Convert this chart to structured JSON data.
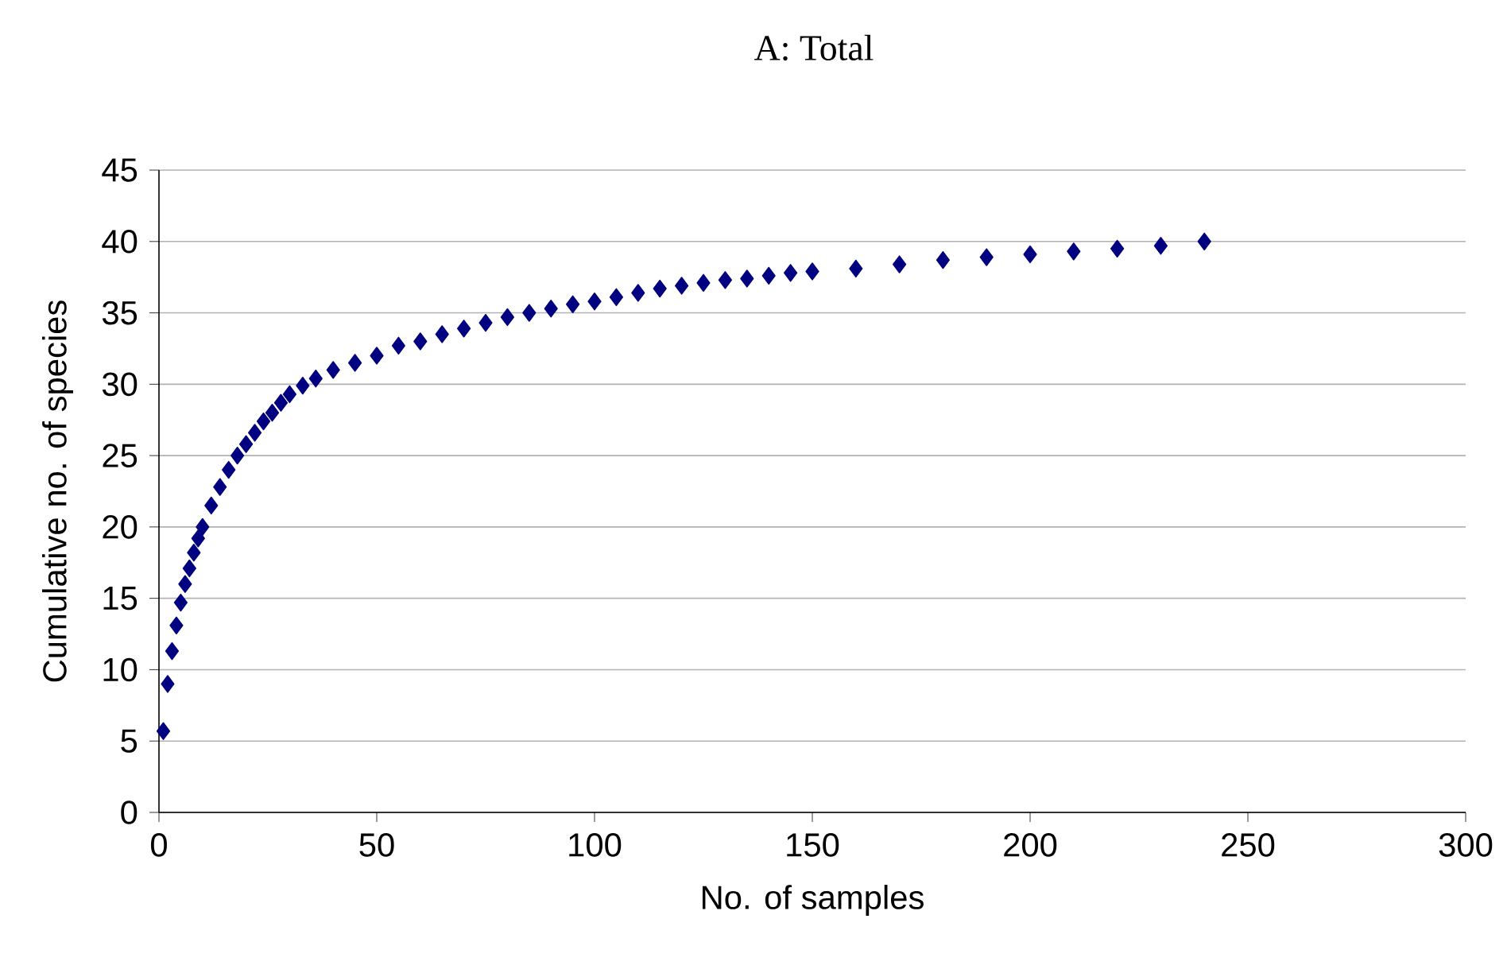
{
  "chart_data": {
    "type": "scatter",
    "title": "A: Total",
    "xlabel": "No. of samples",
    "ylabel": "Cumulative no. of species",
    "x": [
      1,
      2,
      3,
      4,
      5,
      6,
      7,
      8,
      9,
      10,
      12,
      14,
      16,
      18,
      20,
      22,
      24,
      26,
      28,
      30,
      33,
      36,
      40,
      45,
      50,
      55,
      60,
      65,
      70,
      75,
      80,
      85,
      90,
      95,
      100,
      105,
      110,
      115,
      120,
      125,
      130,
      135,
      140,
      145,
      150,
      160,
      170,
      180,
      190,
      200,
      210,
      220,
      230,
      240
    ],
    "values": [
      5.7,
      9.0,
      11.3,
      13.1,
      14.7,
      16.0,
      17.1,
      18.2,
      19.2,
      20.0,
      21.5,
      22.8,
      24.0,
      25.0,
      25.8,
      26.6,
      27.4,
      28.0,
      28.7,
      29.3,
      29.9,
      30.4,
      31.0,
      31.5,
      32.0,
      32.7,
      33.0,
      33.5,
      33.9,
      34.3,
      34.7,
      35.0,
      35.3,
      35.6,
      35.8,
      36.1,
      36.4,
      36.7,
      36.9,
      37.1,
      37.3,
      37.4,
      37.6,
      37.8,
      37.9,
      38.1,
      38.4,
      38.7,
      38.9,
      39.1,
      39.3,
      39.5,
      39.7,
      40.0
    ],
    "color": "#000080",
    "marker": "diamond",
    "grid": "y",
    "xlim": [
      0,
      300
    ],
    "xticks": [
      0,
      50,
      100,
      150,
      200,
      250,
      300
    ],
    "ylim": [
      0,
      45
    ],
    "yticks": [
      0,
      5,
      10,
      15,
      20,
      25,
      30,
      35,
      40,
      45
    ]
  }
}
